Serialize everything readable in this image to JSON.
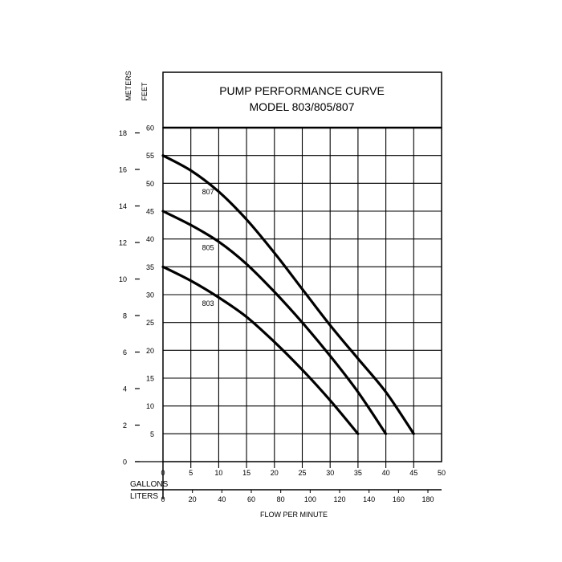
{
  "chart_data": {
    "type": "line",
    "title_line1": "PUMP PERFORMANCE CURVE",
    "title_line2": "MODEL 803/805/807",
    "xlabel": "FLOW PER MINUTE",
    "x_row_labels": {
      "gallons": "GALLONS",
      "liters": "LITERS"
    },
    "y_axis_labels": {
      "meters": "METERS",
      "feet": "FEET"
    },
    "gallon_ticks": [
      "0",
      "5",
      "10",
      "15",
      "20",
      "25",
      "30",
      "35",
      "40",
      "45",
      "50"
    ],
    "liter_ticks": [
      "0",
      "20",
      "40",
      "60",
      "80",
      "100",
      "120",
      "140",
      "160",
      "180"
    ],
    "feet_ticks": [
      "5",
      "10",
      "15",
      "20",
      "25",
      "30",
      "35",
      "40",
      "45",
      "50",
      "55",
      "60"
    ],
    "meter_ticks": [
      "0",
      "2",
      "4",
      "6",
      "8",
      "10",
      "12",
      "14",
      "16",
      "18"
    ],
    "xlim": [
      0,
      50
    ],
    "ylim_feet": [
      0,
      60
    ],
    "grid": true,
    "series": [
      {
        "name": "807",
        "label_at": {
          "x": 7,
          "y": 48
        },
        "points": [
          [
            0,
            55
          ],
          [
            5,
            52.3
          ],
          [
            10,
            48.5
          ],
          [
            15,
            43.5
          ],
          [
            20,
            37.5
          ],
          [
            25,
            31
          ],
          [
            30,
            24.5
          ],
          [
            35,
            18.5
          ],
          [
            40,
            12.5
          ],
          [
            45,
            5
          ]
        ]
      },
      {
        "name": "805",
        "label_at": {
          "x": 7,
          "y": 38
        },
        "points": [
          [
            0,
            45
          ],
          [
            5,
            42.5
          ],
          [
            10,
            39.5
          ],
          [
            15,
            35.5
          ],
          [
            20,
            30.5
          ],
          [
            25,
            25
          ],
          [
            30,
            19
          ],
          [
            35,
            12.5
          ],
          [
            40,
            5
          ]
        ]
      },
      {
        "name": "803",
        "label_at": {
          "x": 7,
          "y": 28
        },
        "points": [
          [
            0,
            35
          ],
          [
            5,
            32.5
          ],
          [
            10,
            29.5
          ],
          [
            15,
            26
          ],
          [
            20,
            21.5
          ],
          [
            25,
            16.5
          ],
          [
            30,
            11
          ],
          [
            35,
            5
          ]
        ]
      }
    ]
  }
}
